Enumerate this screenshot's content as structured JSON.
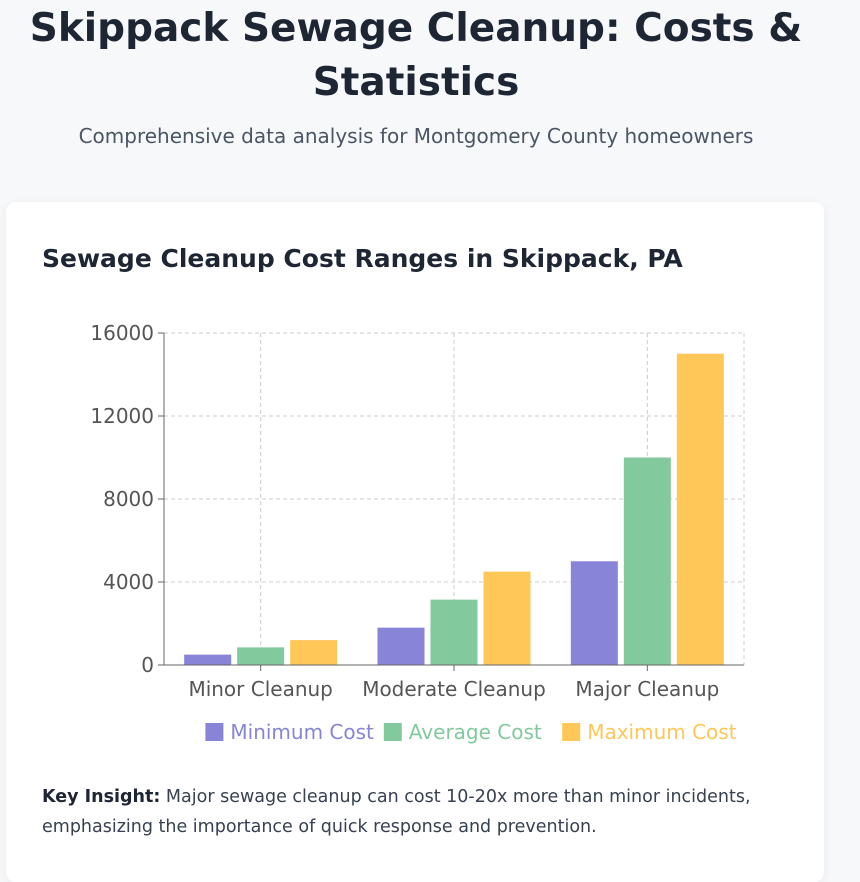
{
  "header": {
    "title": "Skippack Sewage Cleanup: Costs & Statistics",
    "subtitle": "Comprehensive data analysis for Montgomery County homeowners"
  },
  "card": {
    "title": "Sewage Cleanup Cost Ranges in Skippack, PA"
  },
  "insight": {
    "label": "Key Insight:",
    "text": " Major sewage cleanup can cost 10-20x more than minor incidents, emphasizing the importance of quick response and prevention."
  },
  "chart_data": {
    "type": "bar",
    "title": "",
    "xlabel": "",
    "ylabel": "",
    "categories": [
      "Minor Cleanup",
      "Moderate Cleanup",
      "Major Cleanup"
    ],
    "ylim": [
      0,
      16000
    ],
    "yticks": [
      0,
      4000,
      8000,
      12000,
      16000
    ],
    "grid": true,
    "legend_position": "bottom",
    "series": [
      {
        "name": "Minimum Cost",
        "values": [
          500,
          1800,
          5000
        ],
        "color": "#8884d8"
      },
      {
        "name": "Average Cost",
        "values": [
          850,
          3150,
          10000
        ],
        "color": "#82ca9d"
      },
      {
        "name": "Maximum Cost",
        "values": [
          1200,
          4500,
          15000
        ],
        "color": "#ffc658"
      }
    ]
  }
}
